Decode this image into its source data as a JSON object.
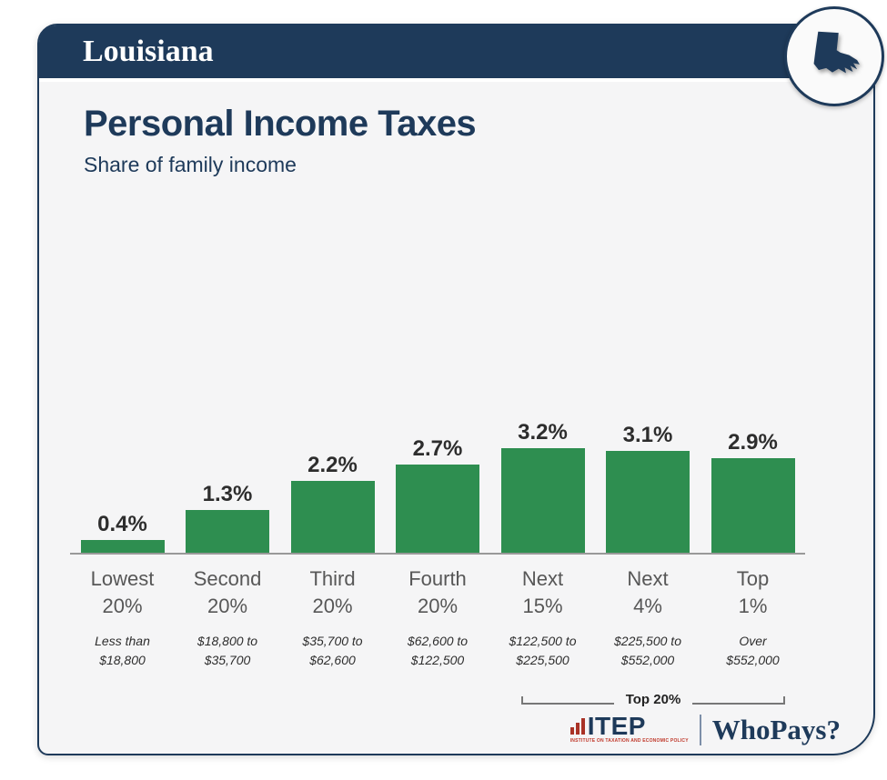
{
  "header": {
    "state": "Louisiana"
  },
  "title": "Personal Income Taxes",
  "subtitle": "Share of family income",
  "chart_data": {
    "type": "bar",
    "title": "Personal Income Taxes",
    "subtitle": "Share of family income",
    "categories": [
      "Lowest 20%",
      "Second 20%",
      "Third 20%",
      "Fourth 20%",
      "Next 15%",
      "Next 4%",
      "Top 1%"
    ],
    "values": [
      0.4,
      1.3,
      2.2,
      2.7,
      3.2,
      3.1,
      2.9
    ],
    "value_labels": [
      "0.4%",
      "1.3%",
      "2.2%",
      "2.7%",
      "3.2%",
      "3.1%",
      "2.9%"
    ],
    "income_ranges": [
      "Less than $18,800",
      "$18,800 to $35,700",
      "$35,700 to $62,600",
      "$62,600 to $122,500",
      "$122,500 to $225,500",
      "$225,500 to $552,000",
      "Over $552,000"
    ],
    "bar_color": "#2e8e50",
    "ylim": [
      0,
      3.5
    ],
    "grid": false,
    "legend": "none",
    "annotation": {
      "label": "Top 20%",
      "start_category": "Next 15%",
      "end_category": "Top 1%"
    }
  },
  "footer": {
    "itep_label": "ITEP",
    "itep_tagline": "INSTITUTE ON TAXATION AND ECONOMIC POLICY",
    "whopays_label": "WhoPays?"
  },
  "colors": {
    "navy": "#1e3a5a",
    "green": "#2e8e50",
    "card_bg": "#f5f5f6"
  }
}
